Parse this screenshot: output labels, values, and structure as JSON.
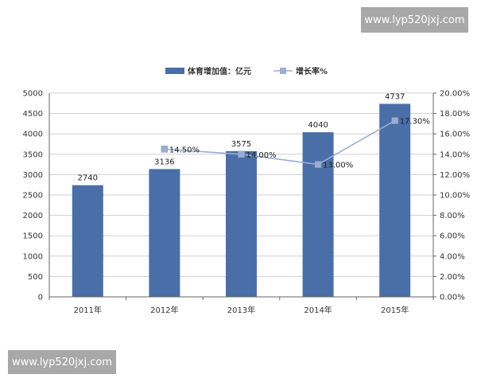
{
  "watermarks": {
    "top": "www.lyp520jxj.com",
    "bottom": "www.lyp520jxj.com"
  },
  "colors": {
    "bar": "#4a6ea7",
    "line": "#9aaed2",
    "marker": "#9aaed2",
    "grid": "#d0d0d0",
    "axis": "#666666"
  },
  "chart_data": {
    "type": "bar",
    "categories": [
      "2011年",
      "2012年",
      "2013年",
      "2014年",
      "2015年"
    ],
    "series": [
      {
        "name": "体育增加值：亿元",
        "type": "bar",
        "axis": "left",
        "values": [
          2740,
          3136,
          3575,
          4040,
          4737
        ],
        "labels": [
          "2740",
          "3136",
          "3575",
          "4040",
          "4737"
        ]
      },
      {
        "name": "增长率%",
        "type": "line",
        "axis": "right",
        "values": [
          null,
          14.5,
          14.0,
          13.0,
          17.3
        ],
        "labels": [
          "",
          "14.50%",
          "14.00%",
          "13.00%",
          "17.30%"
        ]
      }
    ],
    "ylim_left": [
      0,
      5000
    ],
    "yticks_left": [
      "0",
      "500",
      "1000",
      "1500",
      "2000",
      "2500",
      "3000",
      "3500",
      "4000",
      "4500",
      "5000"
    ],
    "ylim_right": [
      0,
      20
    ],
    "yticks_right": [
      "0.00%",
      "2.00%",
      "4.00%",
      "6.00%",
      "8.00%",
      "10.00%",
      "12.00%",
      "14.00%",
      "16.00%",
      "18.00%",
      "20.00%"
    ],
    "grid": true,
    "legend": "top"
  }
}
